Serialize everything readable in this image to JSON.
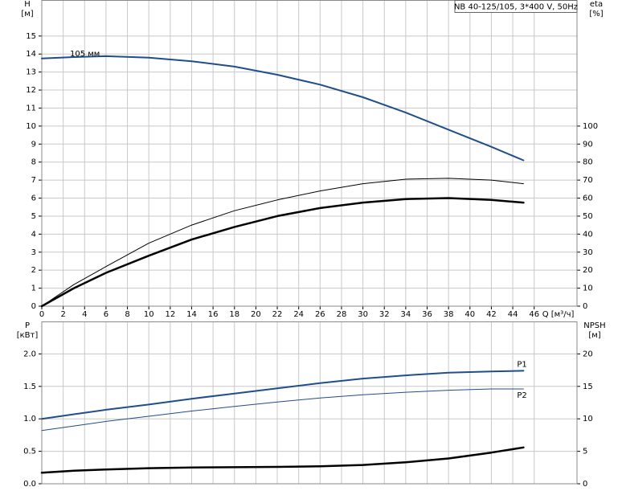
{
  "chart_data": [
    {
      "type": "line",
      "title": "NB 40-125/105, 3*400 V, 50Hz",
      "xlabel": "Q [м³/ч]",
      "ylabel": "H",
      "yunit": "[м]",
      "y2label": "eta",
      "y2unit": "[%]",
      "x": [
        0,
        3,
        6,
        10,
        14,
        18,
        22,
        26,
        30,
        34,
        38,
        42,
        45
      ],
      "xlim": [
        0,
        50
      ],
      "xticks": [
        0,
        2,
        4,
        6,
        8,
        10,
        12,
        14,
        16,
        18,
        20,
        22,
        24,
        26,
        28,
        30,
        32,
        34,
        36,
        38,
        40,
        42,
        44,
        46
      ],
      "ylim": [
        0,
        17
      ],
      "yticks": [
        0,
        1,
        2,
        3,
        4,
        5,
        6,
        7,
        8,
        9,
        10,
        11,
        12,
        13,
        14,
        15
      ],
      "y2lim": [
        0,
        170
      ],
      "y2ticks": [
        0,
        10,
        20,
        30,
        40,
        50,
        60,
        70,
        80,
        90,
        100
      ],
      "grid": true,
      "series": [
        {
          "name": "105 мм",
          "label_position": "start",
          "color": "#1f4e8c",
          "linewidth": 2,
          "values": [
            13.75,
            13.83,
            13.88,
            13.8,
            13.6,
            13.3,
            12.85,
            12.3,
            11.6,
            10.75,
            9.8,
            8.85,
            8.1
          ]
        },
        {
          "axis": "y2",
          "color": "#000000",
          "linewidth": 1,
          "values": [
            0,
            12,
            22,
            35,
            45,
            53,
            59,
            64,
            68,
            70.5,
            71,
            70,
            68
          ]
        },
        {
          "axis": "y2",
          "color": "#000000",
          "linewidth": 2.5,
          "values": [
            0,
            10,
            18.5,
            28,
            37,
            44,
            50,
            54.5,
            57.5,
            59.5,
            60,
            59,
            57.5
          ]
        }
      ]
    },
    {
      "type": "line",
      "ylabel": "P",
      "yunit": "[кВт]",
      "y2label": "NPSH",
      "y2unit": "[м]",
      "x": [
        0,
        3,
        6,
        10,
        14,
        18,
        22,
        26,
        30,
        34,
        38,
        42,
        45
      ],
      "xlim": [
        0,
        50
      ],
      "ylim": [
        0,
        2.5
      ],
      "yticks": [
        {
          "value": 0,
          "label": "0.0"
        },
        0.5,
        {
          "value": 1,
          "label": "1.0"
        },
        1.5,
        {
          "value": 2,
          "label": "2.0"
        }
      ],
      "y2lim": [
        0,
        25
      ],
      "y2ticks": [
        0,
        5,
        10,
        15,
        20
      ],
      "grid": true,
      "series": [
        {
          "name": "P1",
          "label_position": "end",
          "color": "#1f4e8c",
          "linewidth": 2,
          "values": [
            1.0,
            1.07,
            1.14,
            1.22,
            1.31,
            1.39,
            1.47,
            1.55,
            1.62,
            1.67,
            1.71,
            1.73,
            1.74
          ]
        },
        {
          "name": "P2",
          "label_position": "end",
          "color": "#1f4e8c",
          "linewidth": 1,
          "values": [
            0.82,
            0.89,
            0.96,
            1.04,
            1.12,
            1.19,
            1.26,
            1.32,
            1.37,
            1.41,
            1.44,
            1.46,
            1.46
          ]
        },
        {
          "axis": "y2",
          "color": "#000000",
          "linewidth": 2.5,
          "values": [
            1.7,
            2.0,
            2.2,
            2.4,
            2.5,
            2.55,
            2.6,
            2.7,
            2.9,
            3.3,
            3.9,
            4.8,
            5.6
          ]
        }
      ]
    }
  ]
}
